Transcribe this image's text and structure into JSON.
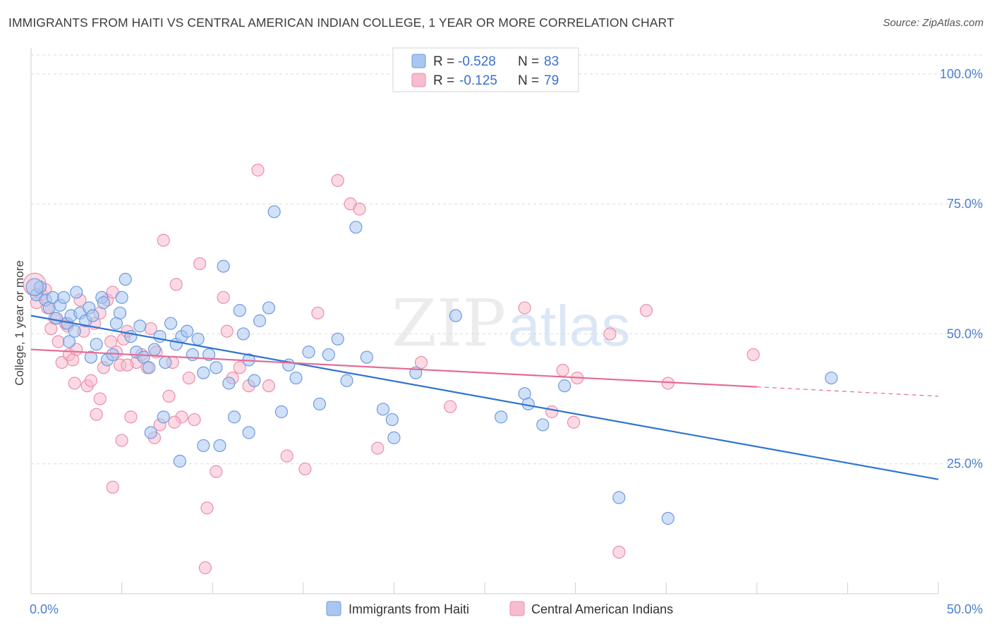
{
  "header": {
    "title": "IMMIGRANTS FROM HAITI VS CENTRAL AMERICAN INDIAN COLLEGE, 1 YEAR OR MORE CORRELATION CHART",
    "source": "Source: ZipAtlas.com"
  },
  "watermark": {
    "zip": "ZIP",
    "atlas": "atlas"
  },
  "legend": {
    "rows": [
      {
        "r_label": "R =",
        "r_value": "-0.528",
        "n_label": "N =",
        "n_value": "83"
      },
      {
        "r_label": "R =",
        "r_value": "-0.125",
        "n_label": "N =",
        "n_value": "79"
      }
    ]
  },
  "colors": {
    "blue_fill": "#a9c6f0",
    "blue_stroke": "#6d9be0",
    "blue_line": "#2f74d0",
    "pink_fill": "#f7bccd",
    "pink_stroke": "#ec8eab",
    "pink_line": "#e56b96",
    "grid": "#d9d9d9",
    "axis_text": "#4a7fd0"
  },
  "chart_data": {
    "type": "scatter",
    "title": "IMMIGRANTS FROM HAITI VS CENTRAL AMERICAN INDIAN COLLEGE, 1 YEAR OR MORE CORRELATION CHART",
    "xlabel": "",
    "ylabel": "College, 1 year or more",
    "xlim": [
      0,
      50
    ],
    "ylim": [
      0,
      105
    ],
    "x_tick_labels": [
      "0.0%",
      "50.0%"
    ],
    "y_tick_values": [
      25,
      50,
      75,
      100
    ],
    "y_tick_labels": [
      "25.0%",
      "50.0%",
      "75.0%",
      "100.0%"
    ],
    "grid": true,
    "legend_position": "top-center",
    "series": [
      {
        "name": "Immigrants from Haiti",
        "r": -0.528,
        "n": 83,
        "trend": {
          "x": [
            0,
            50
          ],
          "y": [
            53.5,
            22.0
          ],
          "dashed_from": null
        },
        "points": [
          [
            0.3,
            57.5
          ],
          [
            0.5,
            59.0
          ],
          [
            0.8,
            56.5
          ],
          [
            1.0,
            55.0
          ],
          [
            1.2,
            57.0
          ],
          [
            1.4,
            53.0
          ],
          [
            1.6,
            55.5
          ],
          [
            1.8,
            57.0
          ],
          [
            2.0,
            52.0
          ],
          [
            2.2,
            53.5
          ],
          [
            2.4,
            50.5
          ],
          [
            2.5,
            58.0
          ],
          [
            2.7,
            54.0
          ],
          [
            3.0,
            52.5
          ],
          [
            3.2,
            55.0
          ],
          [
            3.4,
            53.5
          ],
          [
            3.6,
            48.0
          ],
          [
            3.9,
            57.0
          ],
          [
            4.0,
            56.0
          ],
          [
            4.2,
            45.0
          ],
          [
            4.5,
            46.0
          ],
          [
            4.7,
            52.0
          ],
          [
            4.9,
            54.0
          ],
          [
            5.2,
            60.5
          ],
          [
            5.5,
            49.5
          ],
          [
            5.8,
            46.5
          ],
          [
            6.0,
            51.5
          ],
          [
            6.2,
            45.5
          ],
          [
            6.5,
            43.5
          ],
          [
            6.8,
            47.0
          ],
          [
            7.1,
            49.5
          ],
          [
            7.4,
            44.5
          ],
          [
            7.7,
            52.0
          ],
          [
            8.0,
            48.0
          ],
          [
            8.3,
            49.5
          ],
          [
            8.6,
            50.5
          ],
          [
            8.9,
            46.0
          ],
          [
            9.2,
            49.0
          ],
          [
            9.5,
            42.5
          ],
          [
            9.8,
            46.0
          ],
          [
            10.2,
            43.5
          ],
          [
            10.6,
            63.0
          ],
          [
            10.9,
            40.5
          ],
          [
            11.2,
            34.0
          ],
          [
            11.5,
            54.5
          ],
          [
            11.7,
            50.0
          ],
          [
            12.0,
            45.0
          ],
          [
            12.3,
            41.0
          ],
          [
            12.6,
            52.5
          ],
          [
            13.1,
            55.0
          ],
          [
            13.4,
            73.5
          ],
          [
            13.8,
            35.0
          ],
          [
            14.2,
            44.0
          ],
          [
            14.6,
            41.5
          ],
          [
            15.3,
            46.5
          ],
          [
            15.9,
            36.5
          ],
          [
            16.4,
            46.0
          ],
          [
            16.9,
            49.0
          ],
          [
            17.4,
            41.0
          ],
          [
            17.9,
            70.5
          ],
          [
            18.5,
            45.5
          ],
          [
            19.4,
            35.5
          ],
          [
            19.9,
            33.5
          ],
          [
            20.0,
            30.0
          ],
          [
            21.2,
            42.5
          ],
          [
            23.4,
            53.5
          ],
          [
            25.9,
            34.0
          ],
          [
            27.2,
            38.5
          ],
          [
            27.4,
            36.5
          ],
          [
            28.2,
            32.5
          ],
          [
            29.4,
            40.0
          ],
          [
            32.4,
            18.5
          ],
          [
            35.1,
            14.5
          ],
          [
            44.1,
            41.5
          ],
          [
            5.0,
            57.0
          ],
          [
            6.6,
            31.0
          ],
          [
            7.3,
            34.0
          ],
          [
            9.5,
            28.5
          ],
          [
            10.4,
            28.5
          ],
          [
            12.0,
            31.0
          ],
          [
            8.2,
            25.5
          ],
          [
            3.3,
            45.5
          ],
          [
            2.1,
            48.5
          ]
        ]
      },
      {
        "name": "Central American Indians",
        "r": -0.125,
        "n": 79,
        "trend": {
          "x": [
            0,
            50
          ],
          "y": [
            47.0,
            38.0
          ],
          "dashed_from": 40
        },
        "points": [
          [
            0.3,
            56.0
          ],
          [
            0.6,
            57.5
          ],
          [
            0.9,
            55.0
          ],
          [
            1.1,
            51.0
          ],
          [
            1.3,
            53.0
          ],
          [
            1.5,
            48.5
          ],
          [
            1.7,
            44.5
          ],
          [
            1.9,
            52.0
          ],
          [
            2.1,
            46.0
          ],
          [
            2.3,
            45.0
          ],
          [
            2.5,
            47.0
          ],
          [
            2.7,
            56.5
          ],
          [
            2.9,
            50.5
          ],
          [
            3.1,
            40.0
          ],
          [
            3.3,
            41.0
          ],
          [
            3.5,
            52.0
          ],
          [
            3.6,
            34.5
          ],
          [
            3.8,
            54.0
          ],
          [
            4.0,
            43.5
          ],
          [
            4.2,
            56.5
          ],
          [
            4.4,
            48.5
          ],
          [
            4.5,
            58.0
          ],
          [
            4.7,
            46.5
          ],
          [
            4.9,
            44.0
          ],
          [
            5.1,
            49.0
          ],
          [
            5.3,
            50.5
          ],
          [
            5.5,
            34.0
          ],
          [
            5.8,
            44.5
          ],
          [
            6.1,
            46.0
          ],
          [
            6.4,
            43.5
          ],
          [
            6.6,
            51.0
          ],
          [
            6.9,
            46.5
          ],
          [
            7.1,
            32.5
          ],
          [
            7.3,
            68.0
          ],
          [
            7.6,
            38.0
          ],
          [
            7.8,
            44.5
          ],
          [
            8.0,
            59.5
          ],
          [
            8.3,
            34.0
          ],
          [
            8.7,
            41.5
          ],
          [
            9.0,
            33.5
          ],
          [
            9.3,
            63.5
          ],
          [
            9.7,
            16.5
          ],
          [
            10.2,
            23.5
          ],
          [
            10.6,
            57.0
          ],
          [
            10.8,
            50.5
          ],
          [
            11.1,
            41.5
          ],
          [
            11.5,
            43.5
          ],
          [
            12.0,
            40.0
          ],
          [
            12.5,
            81.5
          ],
          [
            13.1,
            40.0
          ],
          [
            14.1,
            26.5
          ],
          [
            15.1,
            24.0
          ],
          [
            15.8,
            54.0
          ],
          [
            16.9,
            79.5
          ],
          [
            17.6,
            75.0
          ],
          [
            18.1,
            74.0
          ],
          [
            19.1,
            28.0
          ],
          [
            21.5,
            44.5
          ],
          [
            23.1,
            36.0
          ],
          [
            27.2,
            55.0
          ],
          [
            28.7,
            35.0
          ],
          [
            29.3,
            43.0
          ],
          [
            29.9,
            33.0
          ],
          [
            30.1,
            41.5
          ],
          [
            31.9,
            50.0
          ],
          [
            33.9,
            54.5
          ],
          [
            35.1,
            40.5
          ],
          [
            39.8,
            46.0
          ],
          [
            32.4,
            8.0
          ],
          [
            9.6,
            5.0
          ],
          [
            4.5,
            20.5
          ],
          [
            3.8,
            37.5
          ],
          [
            0.8,
            58.5
          ],
          [
            6.8,
            30.0
          ],
          [
            2.4,
            40.5
          ],
          [
            5.0,
            29.5
          ],
          [
            7.9,
            33.0
          ],
          [
            5.3,
            44.0
          ],
          [
            2.0,
            51.5
          ]
        ]
      }
    ]
  },
  "bottom_legend": {
    "items": [
      {
        "label": "Immigrants from Haiti"
      },
      {
        "label": "Central American Indians"
      }
    ]
  }
}
